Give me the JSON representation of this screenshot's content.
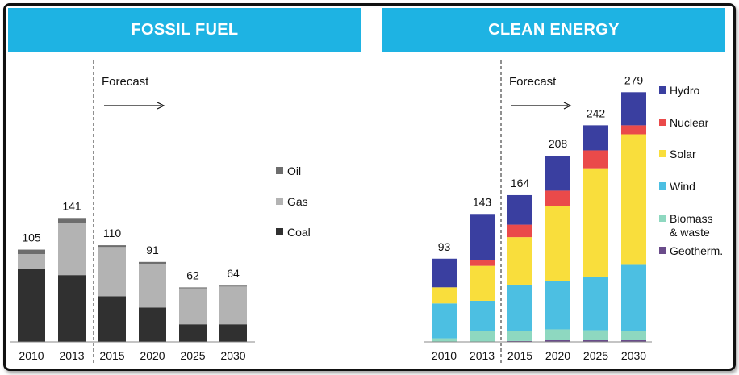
{
  "panels": {
    "fossil_title": "FOSSIL FUEL",
    "clean_title": "CLEAN ENERGY"
  },
  "forecast_label": "Forecast",
  "colors": {
    "header": "#1eb3e3",
    "oil": "#6d6d6d",
    "gas": "#b3b3b3",
    "coal": "#303030",
    "hydro": "#3a3fa0",
    "nuclear": "#ea4a4a",
    "solar": "#f9de3c",
    "wind": "#4cbfe2",
    "biomass": "#8ed8c0",
    "geotherm": "#6a4c8a"
  },
  "chart_data": [
    {
      "type": "bar",
      "stacked": true,
      "title": "FOSSIL FUEL",
      "categories": [
        "2010",
        "2013",
        "2015",
        "2020",
        "2025",
        "2030"
      ],
      "totals": [
        "105",
        "141",
        "110",
        "91",
        "62",
        "64"
      ],
      "forecast_start": "2015",
      "legend_position": "right",
      "series": [
        {
          "name": "Coal",
          "color": "#303030",
          "values": [
            83,
            76,
            52,
            39,
            20,
            20
          ]
        },
        {
          "name": "Gas",
          "color": "#b3b3b3",
          "values": [
            17,
            59,
            56,
            50,
            41,
            43
          ]
        },
        {
          "name": "Oil",
          "color": "#6d6d6d",
          "values": [
            5,
            6,
            2,
            2,
            1,
            1
          ]
        }
      ],
      "ylim": [
        0,
        141
      ]
    },
    {
      "type": "bar",
      "stacked": true,
      "title": "CLEAN ENERGY",
      "categories": [
        "2010",
        "2013",
        "2015",
        "2020",
        "2025",
        "2030"
      ],
      "totals": [
        "93",
        "143",
        "164",
        "208",
        "242",
        "279"
      ],
      "forecast_start": "2015",
      "legend_position": "right",
      "series": [
        {
          "name": "Geotherm.",
          "color": "#6a4c8a",
          "values": [
            0,
            0,
            1,
            2,
            2,
            2
          ]
        },
        {
          "name": "Biomass\n& waste",
          "color": "#8ed8c0",
          "values": [
            4,
            12,
            11,
            12,
            11,
            10
          ]
        },
        {
          "name": "Wind",
          "color": "#4cbfe2",
          "values": [
            39,
            34,
            52,
            54,
            60,
            75
          ]
        },
        {
          "name": "Solar",
          "color": "#f9de3c",
          "values": [
            18,
            39,
            53,
            84,
            121,
            145
          ]
        },
        {
          "name": "Nuclear",
          "color": "#ea4a4a",
          "values": [
            0,
            6,
            14,
            17,
            20,
            10
          ]
        },
        {
          "name": "Hydro",
          "color": "#3a3fa0",
          "values": [
            32,
            52,
            33,
            39,
            28,
            37
          ]
        }
      ],
      "ylim": [
        0,
        279
      ]
    }
  ]
}
